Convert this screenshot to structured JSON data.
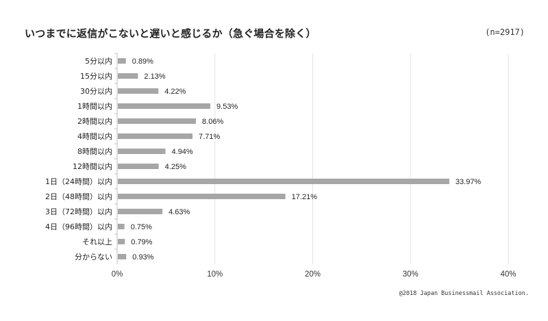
{
  "header": {
    "title": "いつまでに返信がこないと遅いと感じるか（急ぐ場合を除く）",
    "sample": "(n=2917)"
  },
  "footer": {
    "copyright": "@2018 Japan Businessmail Association."
  },
  "colors": {
    "bar": "#a6a6a6",
    "grid": "#e3e3e3",
    "axis": "#bfbfbf"
  },
  "chart_data": {
    "type": "bar",
    "orientation": "horizontal",
    "title": "いつまでに返信がこないと遅いと感じるか（急ぐ場合を除く）",
    "categories": [
      "5分以内",
      "15分以内",
      "30分以内",
      "1時間以内",
      "2時間以内",
      "4時間以内",
      "8時間以内",
      "12時間以内",
      "1日（24時間）以内",
      "2日（48時間）以内",
      "3日（72時間）以内",
      "4日（96時間）以内",
      "それ以上",
      "分からない"
    ],
    "values": [
      0.89,
      2.13,
      4.22,
      9.53,
      8.06,
      7.71,
      4.94,
      4.25,
      33.97,
      17.21,
      4.63,
      0.75,
      0.79,
      0.93
    ],
    "value_labels": [
      "0.89%",
      "2.13%",
      "4.22%",
      "9.53%",
      "8.06%",
      "7.71%",
      "4.94%",
      "4.25%",
      "33.97%",
      "17.21%",
      "4.63%",
      "0.75%",
      "0.79%",
      "0.93%"
    ],
    "xlim": [
      0,
      40
    ],
    "xticks": [
      "0%",
      "10%",
      "20%",
      "30%",
      "40%"
    ],
    "xlabel": "",
    "ylabel": "",
    "grid": true,
    "legend": "none"
  }
}
